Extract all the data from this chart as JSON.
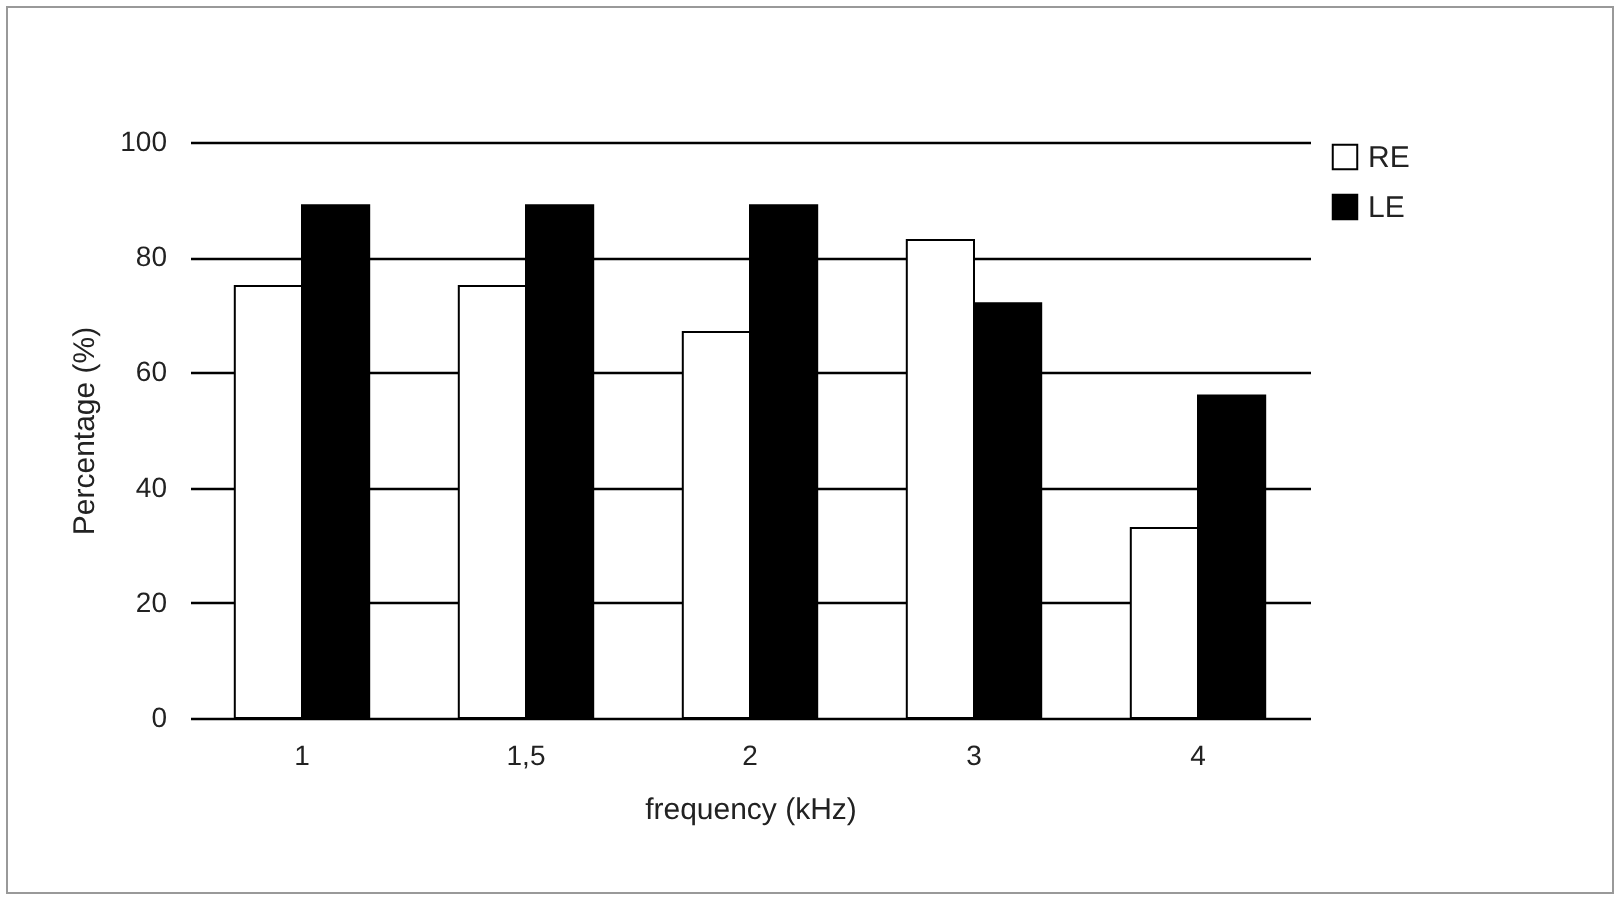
{
  "chart_data": {
    "type": "bar",
    "xlabel": "frequency (kHz)",
    "ylabel": "Percentage (%)",
    "categories": [
      "1",
      "1,5",
      "2",
      "3",
      "4"
    ],
    "series": [
      {
        "name": "RE",
        "color": "#ffffff",
        "values": [
          75,
          75,
          67,
          83,
          33
        ]
      },
      {
        "name": "LE",
        "color": "#000000",
        "values": [
          89,
          89,
          89,
          72,
          56
        ]
      }
    ],
    "ylim": [
      0,
      100
    ],
    "yticks": [
      0,
      20,
      40,
      60,
      80,
      100
    ],
    "grid": "y",
    "legend": "right"
  }
}
